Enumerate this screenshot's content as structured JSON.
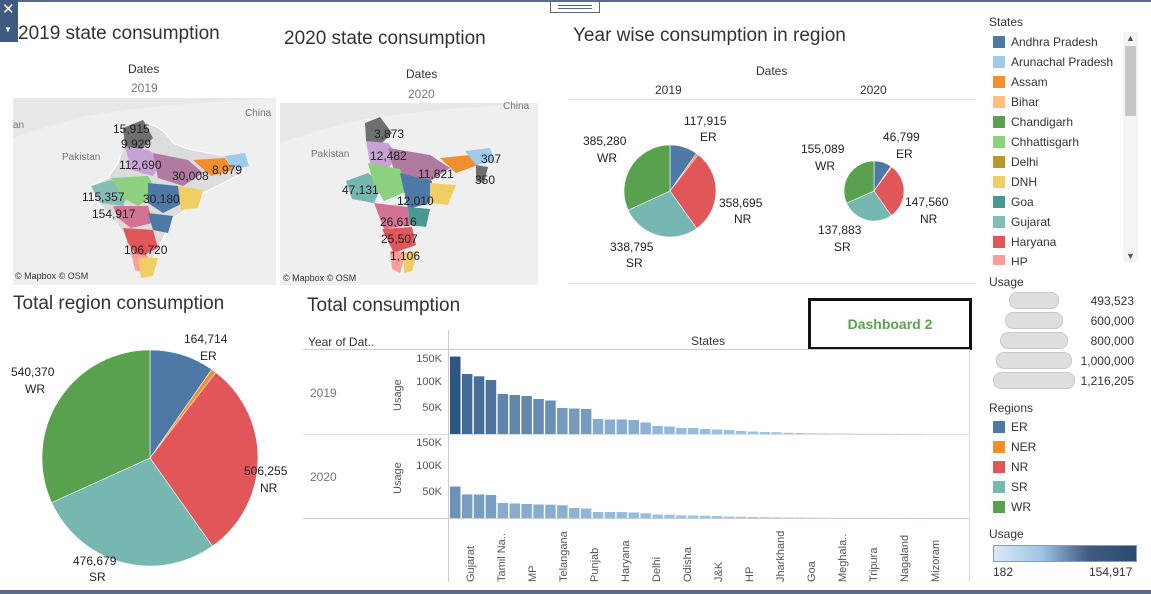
{
  "titles": {
    "state_2019": "2019 state consumption",
    "state_2020": "2020 state consumption",
    "year_region": "Year wise consumption in region",
    "total_region": "Total region consumption",
    "total": "Total consumption"
  },
  "map_2019": {
    "header": "Dates",
    "year": "2019",
    "attribution": "© Mapbox © OSM",
    "country_labels": [
      "China",
      "Pakistan"
    ],
    "labels": [
      "15,915",
      "9,929",
      "112,690",
      "30,008",
      "8,979",
      "115,357",
      "30,180",
      "154,917",
      "106,720"
    ],
    "edge_label": "an"
  },
  "map_2020": {
    "header": "Dates",
    "year": "2020",
    "attribution": "© Mapbox © OSM",
    "country_labels": [
      "China",
      "Pakistan"
    ],
    "labels": [
      "3,873",
      "12,482",
      "11,821",
      "307",
      "350",
      "47,131",
      "12,010",
      "26,616",
      "25,507",
      "1,106"
    ]
  },
  "year_region": {
    "header": "Dates",
    "years": [
      "2019",
      "2020"
    ],
    "pie_2019": {
      "ER": "117,915",
      "WR": "385,280",
      "NR": "358,695",
      "SR": "338,795"
    },
    "pie_2020": {
      "ER": "46,799",
      "WR": "155,089",
      "NR": "147,560",
      "SR": "137,883"
    }
  },
  "total_region": {
    "ER": "164,714",
    "WR": "540,370",
    "NR": "506,255",
    "SR": "476,679"
  },
  "total_consumption": {
    "col_header": "Year of Dat..",
    "states_header": "States",
    "row_years": [
      "2019",
      "2020"
    ],
    "y_axis_label": "Usage",
    "y_ticks": [
      "150K",
      "100K",
      "50K"
    ],
    "x_labels": [
      "Gujarat",
      "Tamil Na..",
      "MP",
      "Telangana",
      "Punjab",
      "Haryana",
      "Delhi",
      "Odisha",
      "J&K",
      "HP",
      "Jharkhand",
      "Goa",
      "Meghala..",
      "Tripura",
      "Nagaland",
      "Mizoram"
    ]
  },
  "dashboard_button": "Dashboard 2",
  "states_legend": {
    "title": "States",
    "items": [
      {
        "name": "Andhra Pradesh",
        "color": "#4e79a7"
      },
      {
        "name": "Arunachal Pradesh",
        "color": "#a0cbe8"
      },
      {
        "name": "Assam",
        "color": "#f28e2b"
      },
      {
        "name": "Bihar",
        "color": "#ffbe7d"
      },
      {
        "name": "Chandigarh",
        "color": "#59a14f"
      },
      {
        "name": "Chhattisgarh",
        "color": "#8cd17d"
      },
      {
        "name": "Delhi",
        "color": "#b6992d"
      },
      {
        "name": "DNH",
        "color": "#f1ce63"
      },
      {
        "name": "Goa",
        "color": "#499894"
      },
      {
        "name": "Gujarat",
        "color": "#86bcb6"
      },
      {
        "name": "Haryana",
        "color": "#e15759"
      },
      {
        "name": "HP",
        "color": "#ff9d9a"
      }
    ]
  },
  "usage_size_legend": {
    "title": "Usage",
    "values": [
      "493,523",
      "600,000",
      "800,000",
      "1,000,000",
      "1,216,205"
    ]
  },
  "regions_legend": {
    "title": "Regions",
    "items": [
      {
        "name": "ER",
        "color": "#4e79a7"
      },
      {
        "name": "NER",
        "color": "#f28e2b"
      },
      {
        "name": "NR",
        "color": "#e15759"
      },
      {
        "name": "SR",
        "color": "#76b7b2"
      },
      {
        "name": "WR",
        "color": "#59a14f"
      }
    ]
  },
  "usage_color_legend": {
    "title": "Usage",
    "min": "182",
    "max": "154,917"
  },
  "colors": {
    "ER": "#4e79a7",
    "NER": "#f28e2b",
    "NR": "#e15759",
    "SR": "#76b7b2",
    "WR": "#59a14f",
    "bar_dark": "#3e6a96",
    "bar_light": "#a6cbe8"
  }
}
